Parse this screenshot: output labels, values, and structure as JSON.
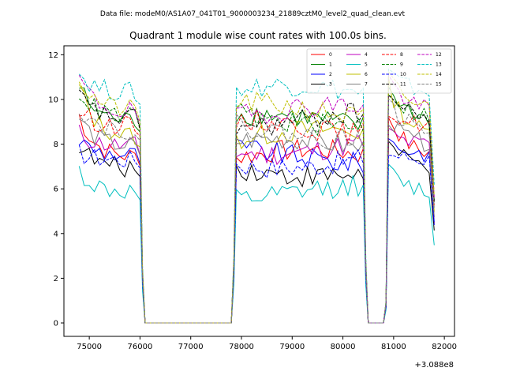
{
  "chart_data": {
    "type": "line",
    "suptitle": "Data file: modeM0/AS1A07_041T01_9000003234_21889cztM0_level2_quad_clean.evt",
    "title": "Quadrant 1 module wise count rates with 100.0s bins.",
    "xlabel": "",
    "ylabel": "",
    "x_offset_label": "+3.088e8",
    "xlim": [
      74500,
      82200
    ],
    "ylim": [
      -0.6,
      12.4
    ],
    "xticks": [
      75000,
      76000,
      77000,
      78000,
      79000,
      80000,
      81000,
      82000
    ],
    "xtick_labels": [
      "75000",
      "76000",
      "77000",
      "78000",
      "79000",
      "80000",
      "81000",
      "82000"
    ],
    "yticks": [
      0,
      2,
      4,
      6,
      8,
      10,
      12
    ],
    "ytick_labels": [
      "0",
      "2",
      "4",
      "6",
      "8",
      "10",
      "12"
    ],
    "segments": [
      {
        "x0": 74800,
        "x1": 76000,
        "drop": [
          76100,
          77800
        ],
        "rise_x": 77900
      },
      {
        "x0": 77900,
        "x1": 80400,
        "drop": [
          80500,
          80800
        ],
        "rise_x": 80900
      },
      {
        "x0": 80900,
        "x1": 81800
      }
    ],
    "series": [
      {
        "name": "0",
        "color": "#ff0000",
        "dash": "solid",
        "base": 7.4,
        "start": 9.3
      },
      {
        "name": "1",
        "color": "#008000",
        "dash": "solid",
        "base": 9.0,
        "start": 10.6
      },
      {
        "name": "2",
        "color": "#0000ff",
        "dash": "solid",
        "base": 7.5,
        "start": 8.2
      },
      {
        "name": "3",
        "color": "#000000",
        "dash": "solid",
        "base": 6.9,
        "start": 8.0
      },
      {
        "name": "4",
        "color": "#bf00bf",
        "dash": "solid",
        "base": 7.9,
        "start": 8.5
      },
      {
        "name": "5",
        "color": "#00bfbf",
        "dash": "solid",
        "base": 5.8,
        "start": 6.8
      },
      {
        "name": "6",
        "color": "#bfbf00",
        "dash": "solid",
        "base": 8.3,
        "start": 10.6
      },
      {
        "name": "7",
        "color": "#808080",
        "dash": "solid",
        "base": 7.9,
        "start": 9.2
      },
      {
        "name": "8",
        "color": "#ff0000",
        "dash": "dashed",
        "base": 8.8,
        "start": 9.5
      },
      {
        "name": "9",
        "color": "#008000",
        "dash": "dashed",
        "base": 9.2,
        "start": 10.4
      },
      {
        "name": "10",
        "color": "#0000ff",
        "dash": "dashed",
        "base": 7.3,
        "start": 7.6
      },
      {
        "name": "11",
        "color": "#000000",
        "dash": "dashed",
        "base": 9.1,
        "start": 10.2
      },
      {
        "name": "12",
        "color": "#bf00bf",
        "dash": "dashed",
        "base": 9.4,
        "start": 11.0
      },
      {
        "name": "13",
        "color": "#00bfbf",
        "dash": "dashed",
        "base": 10.3,
        "start": 11.2
      },
      {
        "name": "14",
        "color": "#bfbf00",
        "dash": "dashed",
        "base": 9.5,
        "start": 11.0
      },
      {
        "name": "15",
        "color": "#808080",
        "dash": "dashed",
        "base": 8.6,
        "start": 9.7
      }
    ]
  }
}
